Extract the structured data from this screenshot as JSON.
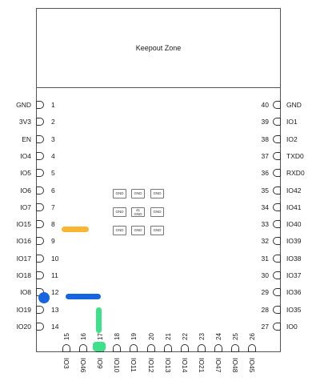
{
  "keepout_label": "Keepout Zone",
  "left_pins": [
    {
      "name": "GND",
      "num": "1"
    },
    {
      "name": "3V3",
      "num": "2"
    },
    {
      "name": "EN",
      "num": "3"
    },
    {
      "name": "IO4",
      "num": "4"
    },
    {
      "name": "IO5",
      "num": "5"
    },
    {
      "name": "IO6",
      "num": "6"
    },
    {
      "name": "IO7",
      "num": "7"
    },
    {
      "name": "IO15",
      "num": "8"
    },
    {
      "name": "IO16",
      "num": "9"
    },
    {
      "name": "IO17",
      "num": "10"
    },
    {
      "name": "IO18",
      "num": "11"
    },
    {
      "name": "IO8",
      "num": "12"
    },
    {
      "name": "IO19",
      "num": "13"
    },
    {
      "name": "IO20",
      "num": "14"
    }
  ],
  "right_pins": [
    {
      "name": "GND",
      "num": "40"
    },
    {
      "name": "IO1",
      "num": "39"
    },
    {
      "name": "IO2",
      "num": "38"
    },
    {
      "name": "TXD0",
      "num": "37"
    },
    {
      "name": "RXD0",
      "num": "36"
    },
    {
      "name": "IO42",
      "num": "35"
    },
    {
      "name": "IO41",
      "num": "34"
    },
    {
      "name": "IO40",
      "num": "33"
    },
    {
      "name": "IO39",
      "num": "32"
    },
    {
      "name": "IO38",
      "num": "31"
    },
    {
      "name": "IO37",
      "num": "30"
    },
    {
      "name": "IO36",
      "num": "29"
    },
    {
      "name": "IO35",
      "num": "28"
    },
    {
      "name": "IO0",
      "num": "27"
    }
  ],
  "bottom_pins": [
    {
      "name": "IO3",
      "num": "15"
    },
    {
      "name": "IO46",
      "num": "16"
    },
    {
      "name": "IO9",
      "num": "17"
    },
    {
      "name": "IO10",
      "num": "18"
    },
    {
      "name": "IO11",
      "num": "19"
    },
    {
      "name": "IO12",
      "num": "20"
    },
    {
      "name": "IO13",
      "num": "21"
    },
    {
      "name": "IO14",
      "num": "22"
    },
    {
      "name": "IO21",
      "num": "23"
    },
    {
      "name": "IO47",
      "num": "24"
    },
    {
      "name": "IO48",
      "num": "25"
    },
    {
      "name": "IO45",
      "num": "26"
    }
  ],
  "gnd_pads": [
    "GND",
    "GND",
    "GND",
    "GND",
    "GND",
    "GND",
    "GND",
    "GND",
    "GND"
  ],
  "gnd_center_num": "41",
  "colors": {
    "orange_mark": "#f7b733",
    "blue_mark": "#1565e0",
    "green_mark": "#3ee08a"
  }
}
